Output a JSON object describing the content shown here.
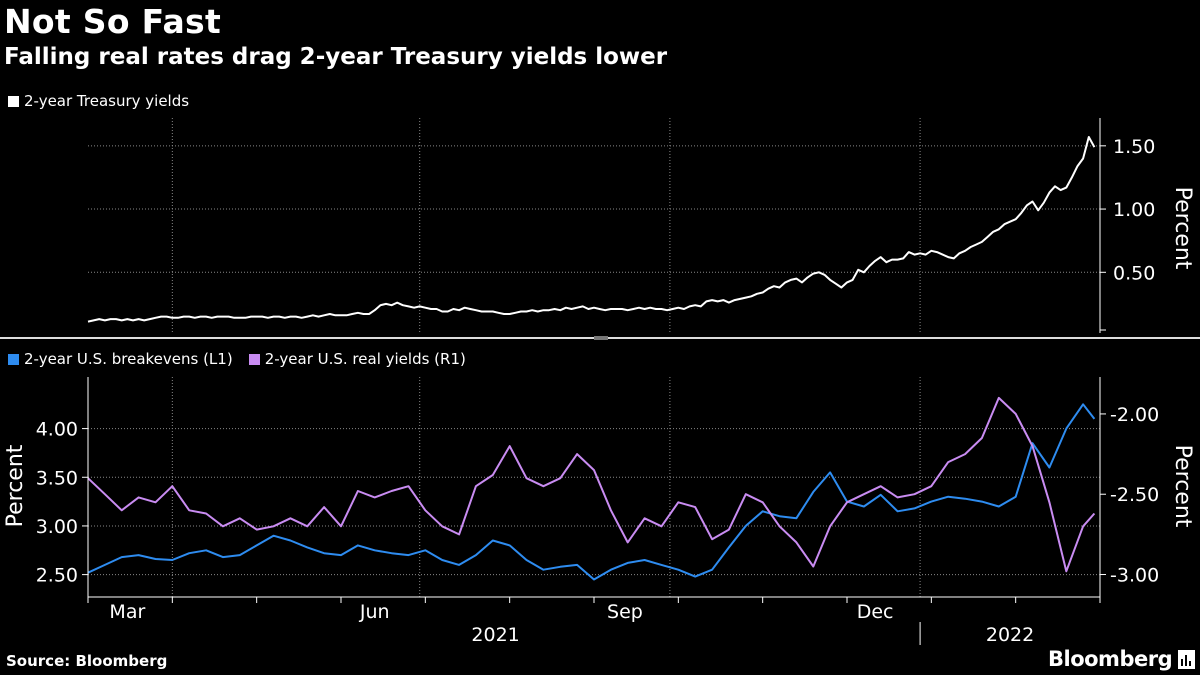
{
  "title": "Not So Fast",
  "subtitle": "Falling real rates drag 2-year Treasury yields lower",
  "source": "Source: Bloomberg",
  "brand": "Bloomberg",
  "colors": {
    "background": "#000000",
    "treasury": "#ffffff",
    "breakevens": "#2e8cf0",
    "real": "#c98cf2",
    "grid": "#888888"
  },
  "chart_data": [
    {
      "type": "line",
      "legend": [
        "2-year Treasury yields"
      ],
      "ylabel": "Percent",
      "ylim": [
        0.02,
        1.72
      ],
      "yticks": [
        0.5,
        1.0,
        1.5
      ],
      "yticklabels": [
        "0.50",
        "1.00",
        "1.50"
      ],
      "grid": true,
      "series": [
        {
          "name": "2-year Treasury yields",
          "x": [
            0,
            2,
            4,
            6,
            8,
            10,
            12,
            14,
            16,
            18,
            20,
            22,
            24,
            26,
            28,
            30,
            32,
            34,
            36,
            38,
            40,
            42,
            44,
            46,
            48,
            50,
            52,
            54,
            56,
            58,
            60,
            62,
            64,
            66,
            68,
            70,
            72,
            74,
            76,
            78,
            80,
            82,
            84,
            86,
            88,
            90,
            92,
            94,
            96,
            98,
            100,
            102,
            104,
            106,
            108,
            110,
            112,
            114,
            116,
            118,
            120,
            122,
            124,
            126,
            128,
            130,
            132,
            134,
            136,
            138,
            140,
            142,
            144,
            146,
            148,
            150,
            152,
            154,
            156,
            158,
            160,
            162,
            164,
            166,
            168,
            170,
            172,
            174,
            176,
            178,
            180,
            182,
            184,
            186,
            188,
            190,
            192,
            194,
            196,
            198,
            200,
            202,
            204,
            206,
            208,
            210,
            212,
            214,
            216,
            218,
            220,
            222,
            224,
            226,
            228,
            230,
            232,
            234,
            236,
            238,
            240,
            242,
            244,
            246,
            248,
            250,
            252,
            254,
            256,
            258,
            260,
            262,
            264,
            266,
            268,
            270,
            272,
            274,
            276,
            278,
            280,
            282,
            284,
            286,
            288,
            290,
            292,
            294,
            296,
            298,
            300,
            302,
            304,
            306,
            308,
            310,
            312,
            314,
            316,
            318,
            320,
            322,
            324,
            326,
            328,
            330,
            332,
            334,
            336,
            338,
            340,
            342,
            344,
            346,
            348,
            350,
            352,
            354,
            356,
            358
          ],
          "values": [
            0.11,
            0.12,
            0.13,
            0.12,
            0.13,
            0.13,
            0.12,
            0.13,
            0.12,
            0.13,
            0.12,
            0.13,
            0.14,
            0.15,
            0.15,
            0.14,
            0.14,
            0.15,
            0.15,
            0.14,
            0.15,
            0.15,
            0.14,
            0.15,
            0.15,
            0.15,
            0.14,
            0.14,
            0.14,
            0.15,
            0.15,
            0.15,
            0.14,
            0.15,
            0.15,
            0.14,
            0.15,
            0.15,
            0.14,
            0.15,
            0.16,
            0.15,
            0.16,
            0.17,
            0.16,
            0.16,
            0.16,
            0.17,
            0.18,
            0.17,
            0.17,
            0.2,
            0.24,
            0.25,
            0.24,
            0.26,
            0.24,
            0.23,
            0.22,
            0.23,
            0.22,
            0.21,
            0.21,
            0.19,
            0.19,
            0.21,
            0.2,
            0.22,
            0.21,
            0.2,
            0.19,
            0.19,
            0.19,
            0.18,
            0.17,
            0.17,
            0.18,
            0.19,
            0.19,
            0.2,
            0.19,
            0.2,
            0.2,
            0.21,
            0.2,
            0.22,
            0.21,
            0.22,
            0.23,
            0.21,
            0.22,
            0.21,
            0.2,
            0.21,
            0.21,
            0.21,
            0.2,
            0.21,
            0.22,
            0.21,
            0.22,
            0.21,
            0.21,
            0.2,
            0.21,
            0.22,
            0.21,
            0.23,
            0.24,
            0.23,
            0.27,
            0.28,
            0.27,
            0.28,
            0.26,
            0.28,
            0.29,
            0.3,
            0.31,
            0.33,
            0.34,
            0.37,
            0.39,
            0.38,
            0.42,
            0.44,
            0.45,
            0.42,
            0.46,
            0.49,
            0.5,
            0.48,
            0.44,
            0.41,
            0.38,
            0.42,
            0.44,
            0.52,
            0.5,
            0.55,
            0.59,
            0.62,
            0.58,
            0.6,
            0.6,
            0.61,
            0.66,
            0.64,
            0.65,
            0.64,
            0.67,
            0.66,
            0.64,
            0.62,
            0.61,
            0.65,
            0.67,
            0.7,
            0.72,
            0.74,
            0.78,
            0.82,
            0.84,
            0.88,
            0.9,
            0.92,
            0.97,
            1.03,
            1.06,
            0.99,
            1.05,
            1.13,
            1.18,
            1.15,
            1.17,
            1.25,
            1.34,
            1.4,
            1.57,
            1.49
          ]
        }
      ]
    },
    {
      "type": "line",
      "legend": [
        "2-year U.S. breakevens (L1)",
        "2-year U.S. real yields (R1)"
      ],
      "ylabel_left": "Percent",
      "ylabel_right": "Percent",
      "ylim_left": [
        2.27,
        4.53
      ],
      "ylim_right": [
        -3.14,
        -1.77
      ],
      "yticks_left": [
        2.5,
        3.0,
        3.5,
        4.0
      ],
      "yticklabels_left": [
        "2.50",
        "3.00",
        "3.50",
        "4.00"
      ],
      "yticks_right": [
        -3.0,
        -2.5,
        -2.0
      ],
      "yticklabels_right": [
        "-3.00",
        "-2.50",
        "-2.00"
      ],
      "xticklabels": [
        "Mar",
        "Jun",
        "Sep",
        "Dec"
      ],
      "year_labels": [
        "2021",
        "2022"
      ],
      "grid": true,
      "series": [
        {
          "name": "2-year U.S. breakevens (L1)",
          "axis": "left",
          "x": [
            0,
            6,
            12,
            18,
            24,
            30,
            36,
            42,
            48,
            54,
            60,
            66,
            72,
            78,
            84,
            90,
            96,
            102,
            108,
            114,
            120,
            126,
            132,
            138,
            144,
            150,
            156,
            162,
            168,
            174,
            180,
            186,
            192,
            198,
            204,
            210,
            216,
            222,
            228,
            234,
            240,
            246,
            252,
            258,
            264,
            270,
            276,
            282,
            288,
            294,
            300,
            306,
            312,
            318,
            324,
            330,
            336,
            342,
            348,
            354,
            358
          ],
          "values": [
            2.52,
            2.6,
            2.68,
            2.7,
            2.66,
            2.65,
            2.72,
            2.75,
            2.68,
            2.7,
            2.8,
            2.9,
            2.85,
            2.78,
            2.72,
            2.7,
            2.8,
            2.75,
            2.72,
            2.7,
            2.75,
            2.65,
            2.6,
            2.7,
            2.85,
            2.8,
            2.65,
            2.55,
            2.58,
            2.6,
            2.45,
            2.55,
            2.62,
            2.65,
            2.6,
            2.55,
            2.48,
            2.55,
            2.78,
            3.0,
            3.15,
            3.1,
            3.08,
            3.35,
            3.55,
            3.25,
            3.2,
            3.32,
            3.15,
            3.18,
            3.25,
            3.3,
            3.28,
            3.25,
            3.2,
            3.3,
            3.85,
            3.6,
            4.0,
            4.25,
            4.1
          ]
        },
        {
          "name": "2-year U.S. real yields (R1)",
          "axis": "right",
          "x": [
            0,
            6,
            12,
            18,
            24,
            30,
            36,
            42,
            48,
            54,
            60,
            66,
            72,
            78,
            84,
            90,
            96,
            102,
            108,
            114,
            120,
            126,
            132,
            138,
            144,
            150,
            156,
            162,
            168,
            174,
            180,
            186,
            192,
            198,
            204,
            210,
            216,
            222,
            228,
            234,
            240,
            246,
            252,
            258,
            264,
            270,
            276,
            282,
            288,
            294,
            300,
            306,
            312,
            318,
            324,
            330,
            336,
            342,
            348,
            354,
            358
          ],
          "values": [
            -2.4,
            -2.5,
            -2.6,
            -2.52,
            -2.55,
            -2.45,
            -2.6,
            -2.62,
            -2.7,
            -2.65,
            -2.72,
            -2.7,
            -2.65,
            -2.7,
            -2.58,
            -2.7,
            -2.48,
            -2.52,
            -2.48,
            -2.45,
            -2.6,
            -2.7,
            -2.75,
            -2.45,
            -2.38,
            -2.2,
            -2.4,
            -2.45,
            -2.4,
            -2.25,
            -2.35,
            -2.6,
            -2.8,
            -2.65,
            -2.7,
            -2.55,
            -2.58,
            -2.78,
            -2.72,
            -2.5,
            -2.55,
            -2.7,
            -2.8,
            -2.95,
            -2.7,
            -2.55,
            -2.5,
            -2.45,
            -2.52,
            -2.5,
            -2.45,
            -2.3,
            -2.25,
            -2.15,
            -1.9,
            -2.0,
            -2.2,
            -2.55,
            -2.98,
            -2.7,
            -2.62
          ]
        }
      ]
    }
  ]
}
